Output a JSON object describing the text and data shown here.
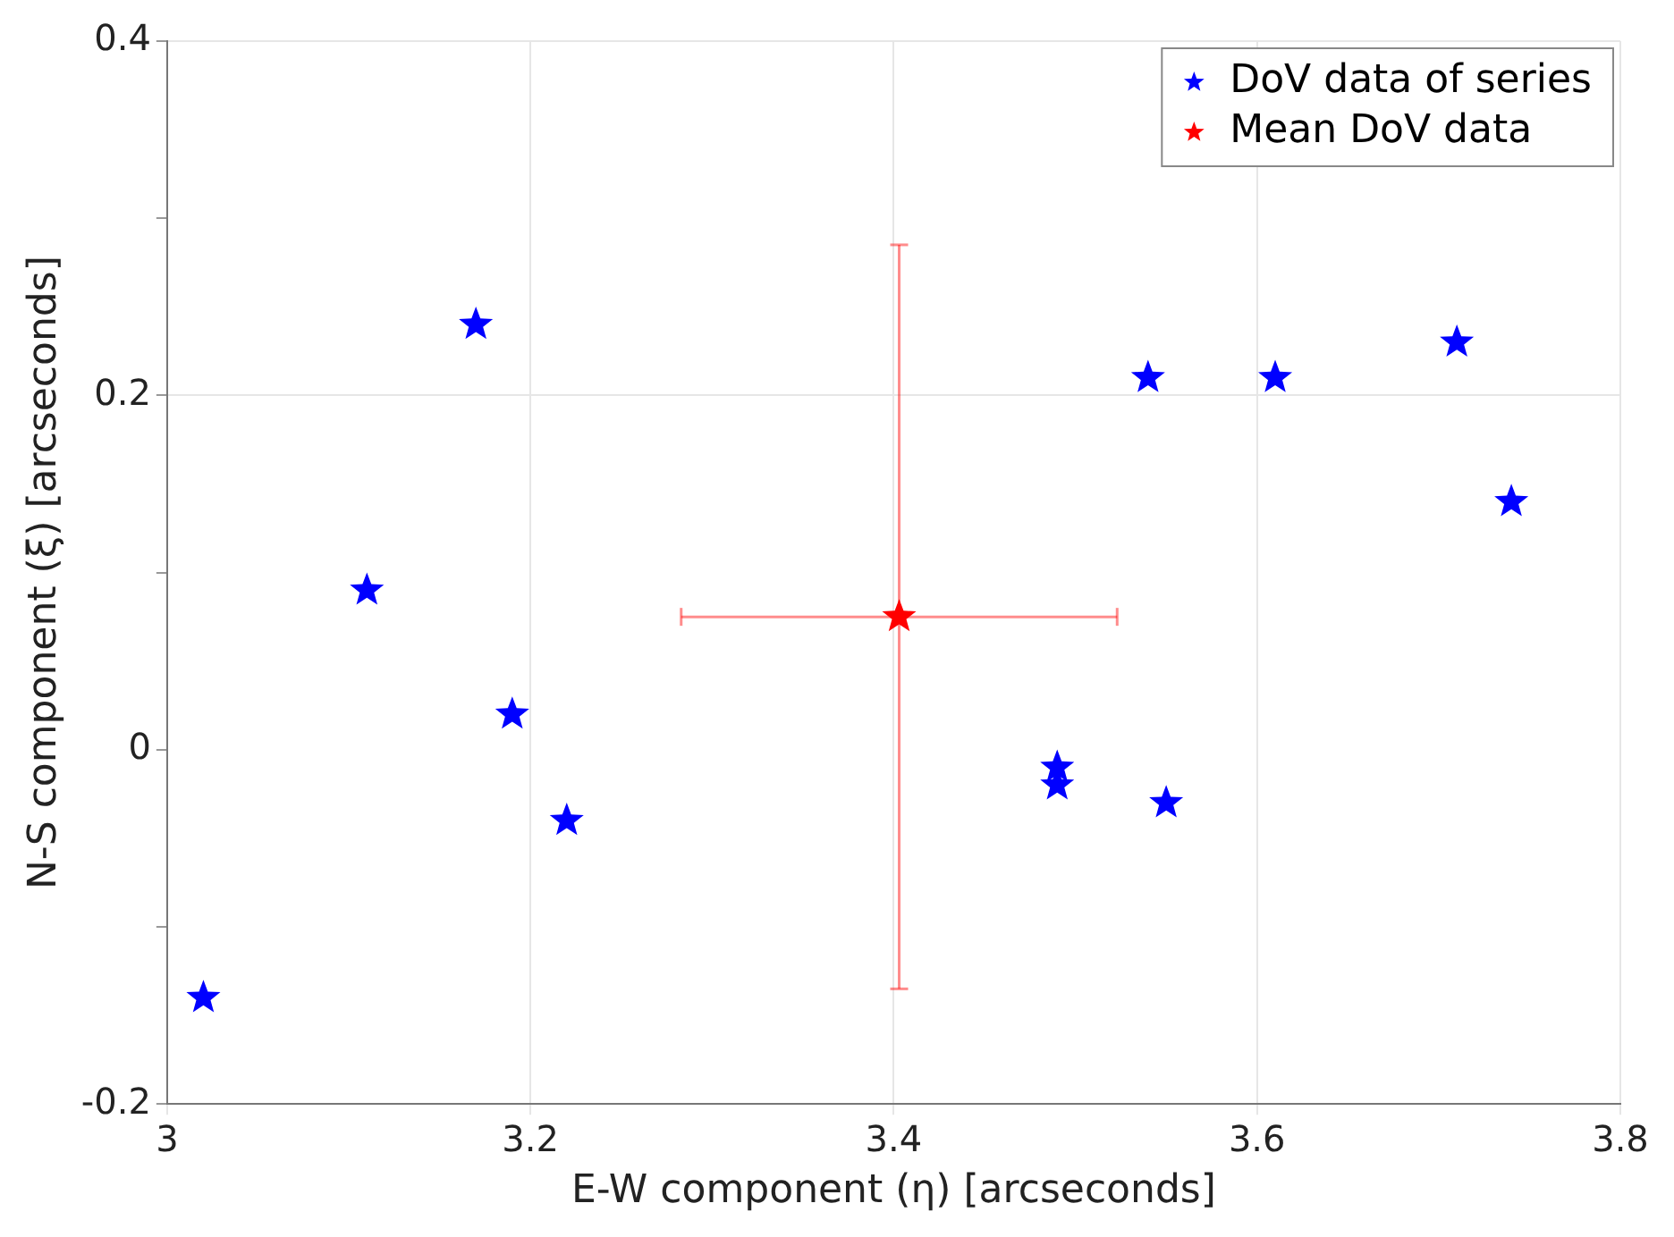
{
  "chart_data": {
    "type": "scatter",
    "xlabel": "E-W component (η) [arcseconds]",
    "ylabel": "N-S component (ξ) [arcseconds]",
    "series": [
      {
        "name": "DoV data of series",
        "color": "#0000ff",
        "x": [
          3.02,
          3.17,
          3.11,
          3.19,
          3.22,
          3.49,
          3.49,
          3.55,
          3.54,
          3.61,
          3.71,
          3.74
        ],
        "values": [
          -0.14,
          0.24,
          0.09,
          0.02,
          -0.04,
          -0.01,
          -0.02,
          -0.03,
          0.21,
          0.21,
          0.23,
          0.14
        ]
      },
      {
        "name": "Mean DoV data",
        "color": "#ff0000",
        "x": [
          3.403
        ],
        "values": [
          0.075
        ],
        "errors": [
          [
            -0.135,
            0.285
          ]
        ],
        "xerrors": [
          [
            3.283,
            3.523
          ]
        ]
      }
    ],
    "xlim": [
      3,
      3.8
    ],
    "xticks": [
      3,
      3.2,
      3.4,
      3.6,
      3.8
    ],
    "ylim": [
      -0.2,
      0.4
    ],
    "yticks": [
      -0.2,
      {
        "value": -0.1,
        "label": null
      },
      0,
      {
        "value": 0.1,
        "label": null
      },
      0.2,
      {
        "value": 0.3,
        "label": null
      },
      0.4
    ],
    "grid": true,
    "legend": "top right",
    "marker": "star"
  }
}
